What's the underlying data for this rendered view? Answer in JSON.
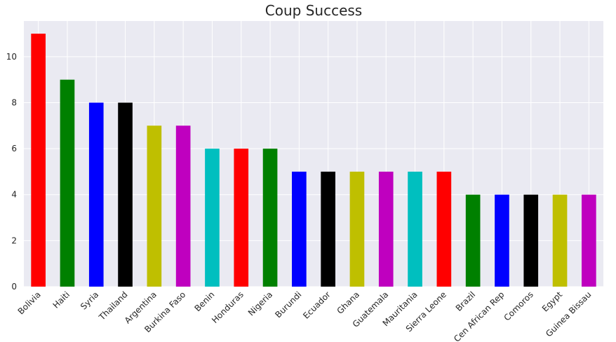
{
  "chart_data": {
    "type": "bar",
    "title": "Coup Success",
    "xlabel": "",
    "ylabel": "",
    "categories": [
      "Bolivia",
      "Haiti",
      "Syria",
      "Thailand",
      "Argentina",
      "Burkina Faso",
      "Benin",
      "Honduras",
      "Nigeria",
      "Burundi",
      "Ecuador",
      "Ghana",
      "Guatemala",
      "Mauritania",
      "Sierra Leone",
      "Brazil",
      "Cen African Rep",
      "Comoros",
      "Egypt",
      "Guinea Bissau"
    ],
    "values": [
      11,
      9,
      8,
      8,
      7,
      7,
      6,
      6,
      6,
      5,
      5,
      5,
      5,
      5,
      5,
      4,
      4,
      4,
      4,
      4
    ],
    "colors": [
      "#ff0000",
      "#008000",
      "#0000ff",
      "#000000",
      "#bfbf00",
      "#bf00bf",
      "#00bfbf",
      "#ff0000",
      "#008000",
      "#0000ff",
      "#000000",
      "#bfbf00",
      "#bf00bf",
      "#00bfbf",
      "#ff0000",
      "#008000",
      "#0000ff",
      "#000000",
      "#bfbf00",
      "#bf00bf"
    ],
    "ylim": [
      0,
      11.55
    ],
    "yticks": [
      0,
      2,
      4,
      6,
      8,
      10
    ],
    "grid": true,
    "legend": "none",
    "plot_background": "#eaeaf2",
    "grid_color": "#ffffff"
  }
}
